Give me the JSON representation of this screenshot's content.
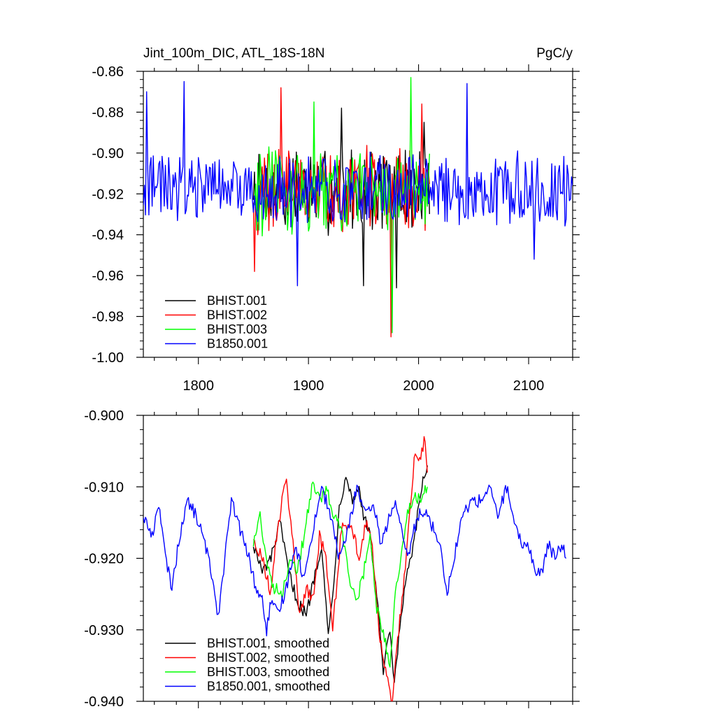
{
  "chart_data": [
    {
      "type": "line",
      "title": "Jint_100m_DIC, ATL_18S-18N",
      "units_label": "PgC/y",
      "xlim": [
        1750,
        2140
      ],
      "ylim": [
        -1.0,
        -0.86
      ],
      "xticks": [
        1800,
        1900,
        2000,
        2100
      ],
      "xtick_labels": [
        "1800",
        "1900",
        "2000",
        "2100"
      ],
      "yticks": [
        -1.0,
        -0.98,
        -0.96,
        -0.94,
        -0.92,
        -0.9,
        -0.88,
        -0.86
      ],
      "ytick_labels": [
        "-1.00",
        "-0.98",
        "-0.96",
        "-0.94",
        "-0.92",
        "-0.90",
        "-0.88",
        "-0.86"
      ],
      "legend_position": "bottom-left",
      "series": [
        {
          "name": "BHIST.001",
          "color": "#000000",
          "x_start": 1850,
          "x_end": 2010,
          "mean": -0.918,
          "amp": 0.018,
          "extremes": [
            [
              1930,
              -0.878
            ],
            [
              1950,
              -0.965
            ],
            [
              1980,
              -0.966
            ],
            [
              2005,
              -0.885
            ]
          ]
        },
        {
          "name": "BHIST.002",
          "color": "#ff0000",
          "x_start": 1850,
          "x_end": 2010,
          "mean": -0.918,
          "amp": 0.018,
          "extremes": [
            [
              1851,
              -0.958
            ],
            [
              1875,
              -0.868
            ],
            [
              1975,
              -0.99
            ],
            [
              2003,
              -0.876
            ]
          ]
        },
        {
          "name": "BHIST.003",
          "color": "#00ff00",
          "x_start": 1850,
          "x_end": 2010,
          "mean": -0.918,
          "amp": 0.018,
          "extremes": [
            [
              1905,
              -0.875
            ],
            [
              1976,
              -0.988
            ],
            [
              1993,
              -0.863
            ]
          ]
        },
        {
          "name": "B1850.001",
          "color": "#0000ff",
          "x_start": 1750,
          "x_end": 2140,
          "mean": -0.918,
          "amp": 0.015,
          "extremes": [
            [
              1753,
              -0.87
            ],
            [
              1787,
              -0.865
            ],
            [
              1890,
              -0.965
            ],
            [
              2044,
              -0.866
            ],
            [
              2105,
              -0.952
            ]
          ]
        }
      ]
    },
    {
      "type": "line",
      "title": "",
      "xlim": [
        1750,
        2140
      ],
      "ylim": [
        -0.94,
        -0.9
      ],
      "yticks": [
        -0.94,
        -0.93,
        -0.92,
        -0.91,
        -0.9
      ],
      "ytick_labels": [
        "-0.940",
        "-0.930",
        "-0.920",
        "-0.910",
        "-0.900"
      ],
      "legend_position": "bottom-left",
      "series": [
        {
          "name": "BHIST.001, smoothed",
          "color": "#000000",
          "points": [
            [
              1850,
              -0.918
            ],
            [
              1858,
              -0.922
            ],
            [
              1866,
              -0.92
            ],
            [
              1874,
              -0.915
            ],
            [
              1882,
              -0.922
            ],
            [
              1890,
              -0.926
            ],
            [
              1898,
              -0.928
            ],
            [
              1906,
              -0.922
            ],
            [
              1912,
              -0.918
            ],
            [
              1918,
              -0.931
            ],
            [
              1922,
              -0.925
            ],
            [
              1928,
              -0.913
            ],
            [
              1934,
              -0.908
            ],
            [
              1940,
              -0.912
            ],
            [
              1946,
              -0.91
            ],
            [
              1950,
              -0.914
            ],
            [
              1956,
              -0.917
            ],
            [
              1962,
              -0.925
            ],
            [
              1968,
              -0.936
            ],
            [
              1974,
              -0.93
            ],
            [
              1978,
              -0.938
            ],
            [
              1984,
              -0.928
            ],
            [
              1990,
              -0.922
            ],
            [
              1996,
              -0.918
            ],
            [
              2000,
              -0.913
            ],
            [
              2004,
              -0.909
            ],
            [
              2008,
              -0.907
            ]
          ]
        },
        {
          "name": "BHIST.002, smoothed",
          "color": "#ff0000",
          "points": [
            [
              1850,
              -0.917
            ],
            [
              1858,
              -0.92
            ],
            [
              1866,
              -0.925
            ],
            [
              1870,
              -0.918
            ],
            [
              1876,
              -0.912
            ],
            [
              1880,
              -0.909
            ],
            [
              1886,
              -0.918
            ],
            [
              1892,
              -0.928
            ],
            [
              1898,
              -0.924
            ],
            [
              1904,
              -0.926
            ],
            [
              1910,
              -0.917
            ],
            [
              1916,
              -0.92
            ],
            [
              1922,
              -0.93
            ],
            [
              1930,
              -0.916
            ],
            [
              1938,
              -0.915
            ],
            [
              1946,
              -0.92
            ],
            [
              1952,
              -0.915
            ],
            [
              1958,
              -0.918
            ],
            [
              1964,
              -0.93
            ],
            [
              1970,
              -0.936
            ],
            [
              1976,
              -0.94
            ],
            [
              1982,
              -0.93
            ],
            [
              1990,
              -0.918
            ],
            [
              1996,
              -0.906
            ],
            [
              2002,
              -0.906
            ],
            [
              2006,
              -0.903
            ],
            [
              2008,
              -0.908
            ]
          ]
        },
        {
          "name": "BHIST.003, smoothed",
          "color": "#00ff00",
          "points": [
            [
              1850,
              -0.918
            ],
            [
              1856,
              -0.914
            ],
            [
              1862,
              -0.92
            ],
            [
              1868,
              -0.924
            ],
            [
              1876,
              -0.925
            ],
            [
              1884,
              -0.92
            ],
            [
              1890,
              -0.922
            ],
            [
              1898,
              -0.915
            ],
            [
              1904,
              -0.909
            ],
            [
              1910,
              -0.912
            ],
            [
              1916,
              -0.91
            ],
            [
              1922,
              -0.914
            ],
            [
              1930,
              -0.916
            ],
            [
              1938,
              -0.924
            ],
            [
              1944,
              -0.926
            ],
            [
              1950,
              -0.922
            ],
            [
              1956,
              -0.917
            ],
            [
              1962,
              -0.927
            ],
            [
              1968,
              -0.93
            ],
            [
              1974,
              -0.936
            ],
            [
              1978,
              -0.926
            ],
            [
              1984,
              -0.92
            ],
            [
              1990,
              -0.914
            ],
            [
              1996,
              -0.911
            ],
            [
              2002,
              -0.912
            ],
            [
              2008,
              -0.91
            ]
          ]
        },
        {
          "name": "B1850.001, smoothed",
          "color": "#0000ff",
          "points": [
            [
              1750,
              -0.914
            ],
            [
              1758,
              -0.917
            ],
            [
              1764,
              -0.912
            ],
            [
              1770,
              -0.92
            ],
            [
              1776,
              -0.924
            ],
            [
              1784,
              -0.916
            ],
            [
              1790,
              -0.912
            ],
            [
              1798,
              -0.914
            ],
            [
              1806,
              -0.918
            ],
            [
              1812,
              -0.922
            ],
            [
              1818,
              -0.928
            ],
            [
              1824,
              -0.92
            ],
            [
              1830,
              -0.912
            ],
            [
              1838,
              -0.916
            ],
            [
              1846,
              -0.92
            ],
            [
              1852,
              -0.924
            ],
            [
              1858,
              -0.926
            ],
            [
              1862,
              -0.93
            ],
            [
              1866,
              -0.926
            ],
            [
              1872,
              -0.928
            ],
            [
              1880,
              -0.924
            ],
            [
              1888,
              -0.918
            ],
            [
              1896,
              -0.923
            ],
            [
              1904,
              -0.916
            ],
            [
              1912,
              -0.91
            ],
            [
              1920,
              -0.914
            ],
            [
              1928,
              -0.92
            ],
            [
              1936,
              -0.916
            ],
            [
              1944,
              -0.91
            ],
            [
              1952,
              -0.914
            ],
            [
              1960,
              -0.913
            ],
            [
              1966,
              -0.918
            ],
            [
              1972,
              -0.915
            ],
            [
              1978,
              -0.912
            ],
            [
              1984,
              -0.916
            ],
            [
              1990,
              -0.92
            ],
            [
              1996,
              -0.916
            ],
            [
              2002,
              -0.913
            ],
            [
              2008,
              -0.914
            ],
            [
              2014,
              -0.916
            ],
            [
              2020,
              -0.918
            ],
            [
              2026,
              -0.925
            ],
            [
              2032,
              -0.92
            ],
            [
              2040,
              -0.914
            ],
            [
              2048,
              -0.912
            ],
            [
              2056,
              -0.912
            ],
            [
              2064,
              -0.91
            ],
            [
              2072,
              -0.914
            ],
            [
              2080,
              -0.91
            ],
            [
              2088,
              -0.916
            ],
            [
              2094,
              -0.918
            ],
            [
              2100,
              -0.918
            ],
            [
              2106,
              -0.922
            ],
            [
              2112,
              -0.922
            ],
            [
              2118,
              -0.918
            ],
            [
              2124,
              -0.92
            ],
            [
              2130,
              -0.918
            ],
            [
              2134,
              -0.92
            ]
          ]
        }
      ]
    }
  ]
}
